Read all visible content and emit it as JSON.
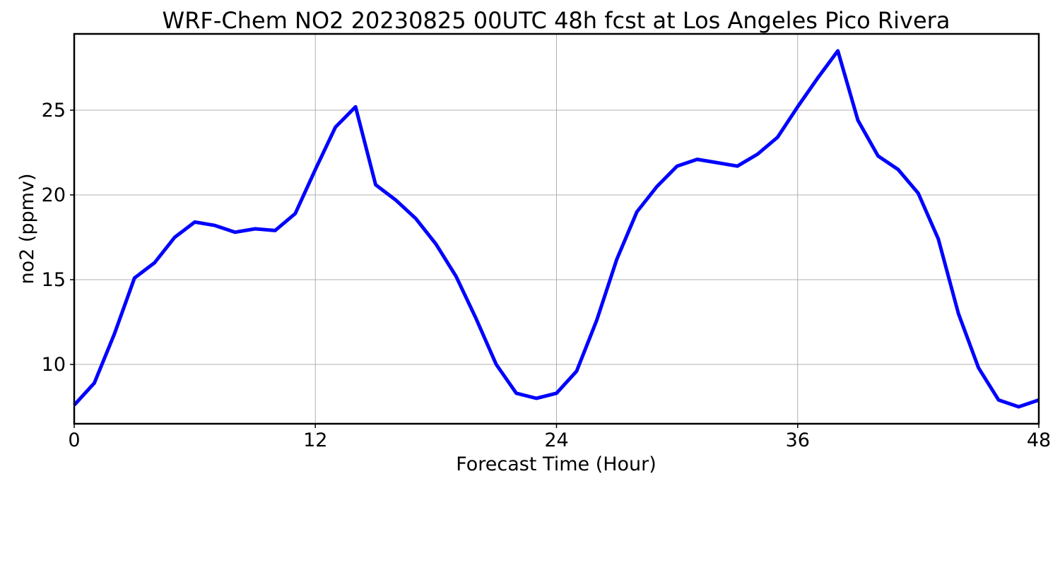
{
  "chart_data": {
    "type": "line",
    "title": "WRF-Chem NO2  20230825 00UTC 48h fcst at Los Angeles Pico Rivera",
    "xlabel": "Forecast Time (Hour)",
    "ylabel": "no2  (ppmv)",
    "xlim": [
      0,
      48
    ],
    "ylim": [
      6.5,
      29.5
    ],
    "xticks": [
      0,
      12,
      24,
      36,
      48
    ],
    "yticks": [
      10,
      15,
      20,
      25
    ],
    "grid": true,
    "line_color": "#0000ff",
    "series": [
      {
        "x": [
          0,
          1,
          2,
          3,
          4,
          5,
          6,
          7,
          8,
          9,
          10,
          11,
          12,
          13,
          14,
          15,
          16,
          17,
          18,
          19,
          20,
          21,
          22,
          23,
          24,
          25,
          26,
          27,
          28,
          29,
          30,
          31,
          32,
          33,
          34,
          35,
          36,
          37,
          38,
          39,
          40,
          41,
          42,
          43,
          44,
          45,
          46,
          47,
          48
        ],
        "values": [
          7.6,
          8.9,
          11.8,
          15.1,
          16.0,
          17.5,
          18.4,
          18.2,
          17.8,
          18.0,
          17.9,
          18.9,
          21.5,
          24.0,
          25.2,
          20.6,
          19.7,
          18.6,
          17.1,
          15.2,
          12.7,
          10.0,
          8.3,
          8.0,
          8.3,
          9.6,
          12.6,
          16.2,
          19.0,
          20.5,
          21.7,
          22.1,
          21.9,
          21.7,
          22.4,
          23.4,
          25.2,
          26.9,
          28.5,
          24.4,
          22.3,
          21.5,
          20.1,
          17.4,
          13.0,
          9.8,
          7.9,
          7.5,
          7.9
        ]
      }
    ]
  }
}
